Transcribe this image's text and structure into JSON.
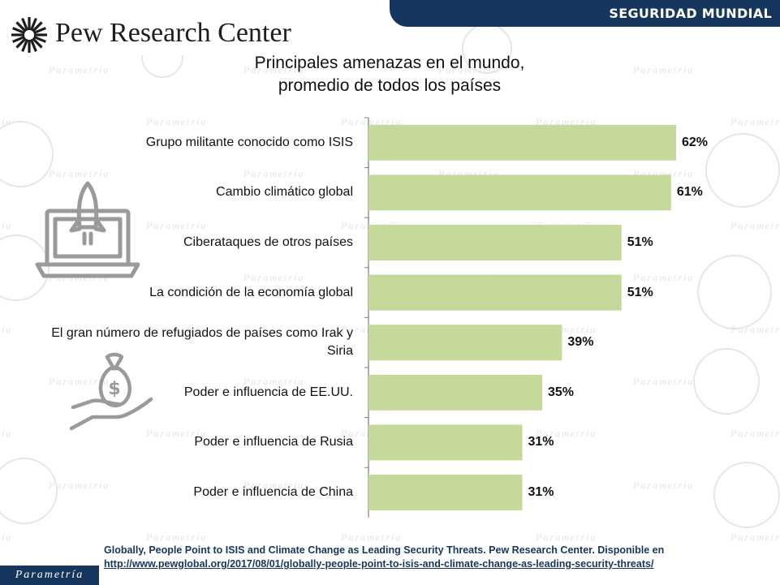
{
  "banner": {
    "label": "SEGURIDAD MUNDIAL"
  },
  "logo": {
    "text": "Pew Research Center"
  },
  "watermark": {
    "text": "Parametría"
  },
  "footer": {
    "brand": "Parametría",
    "source_text": "Globally, People Point to ISIS and Climate Change as Leading Security Threats. Pew Research Center. Disponible en",
    "source_url": "http://www.pewglobal.org/2017/08/01/globally-people-point-to-isis-and-climate-change-as-leading-security-threats/"
  },
  "icons": [
    "rocket-laptop-icon",
    "money-bag-hand-icon"
  ],
  "colors": {
    "bar": "#c5d99b",
    "banner": "#17365d",
    "axis": "#7f7f7f"
  },
  "chart_data": {
    "type": "bar",
    "orientation": "horizontal",
    "title_lines": [
      "Principales amenazas en el mundo,",
      "promedio de todos los países"
    ],
    "categories": [
      "Grupo militante conocido como ISIS",
      "Cambio climático global",
      "Ciberataques de otros países",
      "La condición de la economía global",
      "El gran número de refugiados de países como Irak y Siria",
      "Poder e influencia de EE.UU.",
      "Poder e influencia de Rusia",
      "Poder e influencia de China"
    ],
    "values": [
      62,
      61,
      51,
      51,
      39,
      35,
      31,
      31
    ],
    "value_labels": [
      "62%",
      "61%",
      "51%",
      "51%",
      "39%",
      "35%",
      "31%",
      "31%"
    ],
    "xlim": [
      0,
      62
    ],
    "grid": false,
    "legend": "none"
  }
}
